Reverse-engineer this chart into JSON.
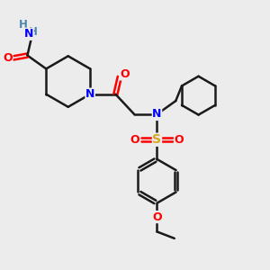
{
  "background_color": "#ececec",
  "atom_colors": {
    "C": "#1a1a1a",
    "N": "#0000FF",
    "O": "#FF0000",
    "S": "#DAA520",
    "H": "#4a86a8"
  },
  "bond_color": "#1a1a1a",
  "bond_width": 1.8,
  "figsize": [
    3.0,
    3.0
  ],
  "dpi": 100
}
